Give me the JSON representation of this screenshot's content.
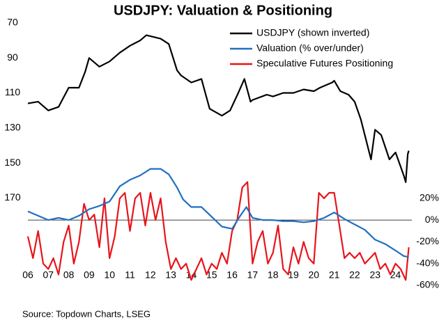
{
  "chart_data": {
    "type": "line",
    "title": "USDJPY: Valuation & Positioning",
    "source": "Source: Topdown Charts, LSEG",
    "xlim": [
      2006,
      2024.8
    ],
    "xticks": [
      {
        "value": 2006,
        "label": "06"
      },
      {
        "value": 2007,
        "label": "07"
      },
      {
        "value": 2008,
        "label": "08"
      },
      {
        "value": 2009,
        "label": "09"
      },
      {
        "value": 2010,
        "label": "10"
      },
      {
        "value": 2011,
        "label": "11"
      },
      {
        "value": 2012,
        "label": "12"
      },
      {
        "value": 2013,
        "label": "13"
      },
      {
        "value": 2014,
        "label": "14"
      },
      {
        "value": 2015,
        "label": "15"
      },
      {
        "value": 2016,
        "label": "16"
      },
      {
        "value": 2017,
        "label": "17"
      },
      {
        "value": 2018,
        "label": "18"
      },
      {
        "value": 2019,
        "label": "19"
      },
      {
        "value": 2020,
        "label": "20"
      },
      {
        "value": 2021,
        "label": "21"
      },
      {
        "value": 2022,
        "label": "22"
      },
      {
        "value": 2023,
        "label": "23"
      },
      {
        "value": 2024,
        "label": "24"
      }
    ],
    "ylim": [
      70,
      220
    ],
    "y_inverted": true,
    "yticks": [
      70,
      90,
      110,
      130,
      150,
      170
    ],
    "y2lim": [
      -60,
      181
    ],
    "y2ticks": [
      {
        "value": 20,
        "label": "20%"
      },
      {
        "value": 0,
        "label": "0%"
      },
      {
        "value": -20,
        "label": "-20%"
      },
      {
        "value": -40,
        "label": "-40%"
      },
      {
        "value": -60,
        "label": "-60%"
      }
    ],
    "legend": "upper-right",
    "series": [
      {
        "name": "USDJPY (shown inverted)",
        "color": "#000000",
        "x": [
          2006,
          2006.5,
          2007,
          2007.5,
          2008,
          2008.5,
          2008.8,
          2009,
          2009.5,
          2010,
          2010.5,
          2011,
          2011.5,
          2011.8,
          2012.5,
          2012.9,
          2013.3,
          2013.5,
          2014,
          2014.5,
          2014.9,
          2015.5,
          2015.9,
          2016.3,
          2016.6,
          2016.9,
          2017,
          2017.7,
          2018,
          2018.5,
          2019,
          2019.5,
          2020,
          2020.3,
          2020.9,
          2021,
          2021.3,
          2021.7,
          2022,
          2022.3,
          2022.8,
          2023,
          2023.3,
          2023.7,
          2024,
          2024.4,
          2024.5,
          2024.6,
          2024.65
        ],
        "values": [
          116,
          115,
          120,
          118,
          107,
          107,
          98,
          90,
          95,
          92,
          87,
          83,
          80,
          77,
          79,
          82,
          97,
          100,
          104,
          102,
          119,
          123,
          120,
          110,
          102,
          115,
          114,
          111,
          112,
          110,
          110,
          108,
          109,
          107,
          104,
          103,
          109,
          111,
          115,
          125,
          148,
          131,
          134,
          148,
          144,
          157,
          161,
          145,
          143
        ]
      },
      {
        "name": "Valuation (% over/under)",
        "color": "#1f6fc1",
        "axis": "y2",
        "x": [
          2006,
          2007,
          2007.5,
          2008,
          2008.5,
          2009,
          2009.5,
          2010,
          2010.5,
          2011,
          2011.5,
          2012,
          2012.5,
          2012.9,
          2013.3,
          2013.6,
          2014,
          2014.5,
          2015,
          2015.5,
          2016,
          2016.4,
          2016.7,
          2017,
          2017.5,
          2018,
          2018.5,
          2019,
          2019.5,
          2020,
          2020.5,
          2021,
          2021.5,
          2022,
          2022.5,
          2023,
          2023.5,
          2024,
          2024.4,
          2024.65
        ],
        "values": [
          8,
          0,
          2,
          0,
          4,
          10,
          13,
          17,
          31,
          37,
          41,
          47,
          47,
          42,
          30,
          19,
          12,
          12,
          3,
          -6,
          -8,
          4,
          12,
          2,
          0,
          0,
          -1,
          -1,
          -2,
          -1,
          2,
          7,
          1,
          -4,
          -9,
          -18,
          -22,
          -28,
          -33,
          -34
        ]
      },
      {
        "name": "Speculative Futures Positioning",
        "color": "#e8141b",
        "axis": "y2",
        "x": [
          2006,
          2006.25,
          2006.5,
          2006.75,
          2007,
          2007.25,
          2007.5,
          2007.75,
          2008,
          2008.25,
          2008.5,
          2008.75,
          2009,
          2009.25,
          2009.5,
          2009.75,
          2010,
          2010.25,
          2010.5,
          2010.75,
          2011,
          2011.25,
          2011.5,
          2011.75,
          2012,
          2012.25,
          2012.5,
          2012.75,
          2013,
          2013.25,
          2013.5,
          2013.75,
          2014,
          2014.25,
          2014.5,
          2014.75,
          2015,
          2015.25,
          2015.5,
          2015.75,
          2016,
          2016.25,
          2016.5,
          2016.75,
          2017,
          2017.25,
          2017.5,
          2017.75,
          2018,
          2018.25,
          2018.5,
          2018.75,
          2019,
          2019.25,
          2019.5,
          2019.75,
          2020,
          2020.25,
          2020.5,
          2020.75,
          2021,
          2021.25,
          2021.5,
          2021.75,
          2022,
          2022.25,
          2022.5,
          2022.75,
          2023,
          2023.25,
          2023.5,
          2023.75,
          2024,
          2024.25,
          2024.5,
          2024.65
        ],
        "values": [
          -15,
          -35,
          -10,
          -40,
          -45,
          -35,
          -50,
          -20,
          -5,
          -40,
          -20,
          15,
          0,
          5,
          -25,
          20,
          -35,
          -15,
          20,
          25,
          -10,
          20,
          25,
          -5,
          25,
          0,
          20,
          -20,
          -45,
          -35,
          -45,
          -40,
          -55,
          -45,
          -35,
          -50,
          -40,
          -45,
          -30,
          -40,
          -10,
          0,
          30,
          35,
          -40,
          -20,
          -10,
          -40,
          -30,
          -5,
          -45,
          -50,
          -25,
          -40,
          -20,
          -35,
          -40,
          25,
          20,
          25,
          25,
          -5,
          -35,
          -30,
          -35,
          -30,
          -40,
          -35,
          -30,
          -45,
          -40,
          -50,
          -40,
          -45,
          -55,
          -25
        ]
      }
    ]
  }
}
